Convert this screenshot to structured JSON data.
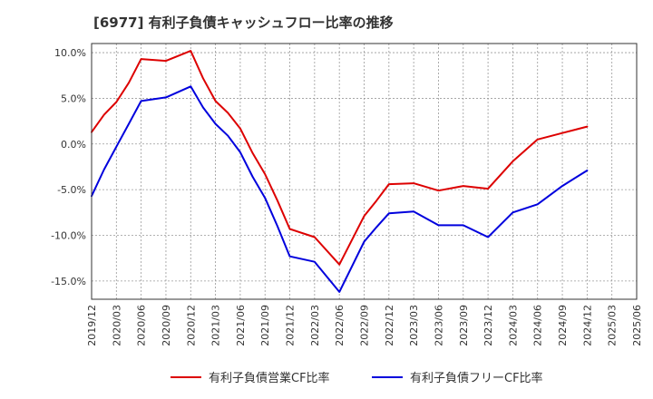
{
  "chart_data": {
    "type": "line",
    "title": "[6977]  有利子負債キャッシュフロー比率の推移",
    "xlabel": "",
    "ylabel": "",
    "x": [
      "2019/12",
      "2020/03",
      "2020/06",
      "2020/09",
      "2020/12",
      "2021/03",
      "2021/06",
      "2021/09",
      "2021/12",
      "2022/03",
      "2022/06",
      "2022/09",
      "2022/12",
      "2023/03",
      "2023/06",
      "2023/09",
      "2023/12",
      "2024/03",
      "2024/06",
      "2024/09",
      "2024/12",
      "2025/03",
      "2025/06"
    ],
    "x_index_range": [
      0,
      22
    ],
    "ylim": [
      -17.0,
      11.0
    ],
    "yticks": [
      10,
      5,
      0,
      -5,
      -10,
      -15
    ],
    "ytick_labels": [
      "10.0%",
      "5.0%",
      "0.0%",
      "-5.0%",
      "-10.0%",
      "-15.0%"
    ],
    "grid": true,
    "legend_position": "bottom",
    "series": [
      {
        "name": "有利子負債営業CF比率",
        "color": "#dd0000",
        "points": [
          [
            0,
            1.3
          ],
          [
            0.5,
            3.2
          ],
          [
            1,
            4.6
          ],
          [
            1.5,
            6.7
          ],
          [
            2,
            9.3
          ],
          [
            3,
            9.1
          ],
          [
            4,
            10.2
          ],
          [
            4.5,
            7.2
          ],
          [
            5,
            4.7
          ],
          [
            5.5,
            3.4
          ],
          [
            6,
            1.7
          ],
          [
            6.5,
            -1.0
          ],
          [
            7,
            -3.3
          ],
          [
            7.5,
            -6.2
          ],
          [
            8,
            -9.3
          ],
          [
            9,
            -10.2
          ],
          [
            10,
            -13.2
          ],
          [
            11,
            -7.9
          ],
          [
            11.5,
            -6.2
          ],
          [
            12,
            -4.4
          ],
          [
            13,
            -4.3
          ],
          [
            14,
            -5.1
          ],
          [
            15,
            -4.6
          ],
          [
            16,
            -4.9
          ],
          [
            17,
            -1.9
          ],
          [
            18,
            0.5
          ],
          [
            19,
            1.2
          ],
          [
            20,
            1.9
          ]
        ]
      },
      {
        "name": "有利子負債フリーCF比率",
        "color": "#0000dd",
        "points": [
          [
            0,
            -5.7
          ],
          [
            0.5,
            -2.8
          ],
          [
            1,
            -0.3
          ],
          [
            1.5,
            2.2
          ],
          [
            2,
            4.7
          ],
          [
            3,
            5.1
          ],
          [
            4,
            6.3
          ],
          [
            4.5,
            4.0
          ],
          [
            5,
            2.2
          ],
          [
            5.5,
            0.9
          ],
          [
            6,
            -0.9
          ],
          [
            6.5,
            -3.6
          ],
          [
            7,
            -5.9
          ],
          [
            7.5,
            -9.0
          ],
          [
            8,
            -12.3
          ],
          [
            9,
            -12.9
          ],
          [
            10,
            -16.2
          ],
          [
            11,
            -10.7
          ],
          [
            11.5,
            -9.1
          ],
          [
            12,
            -7.6
          ],
          [
            13,
            -7.4
          ],
          [
            14,
            -8.9
          ],
          [
            15,
            -8.9
          ],
          [
            16,
            -10.2
          ],
          [
            17,
            -7.5
          ],
          [
            18,
            -6.6
          ],
          [
            19,
            -4.6
          ],
          [
            20,
            -2.9
          ]
        ]
      }
    ]
  }
}
